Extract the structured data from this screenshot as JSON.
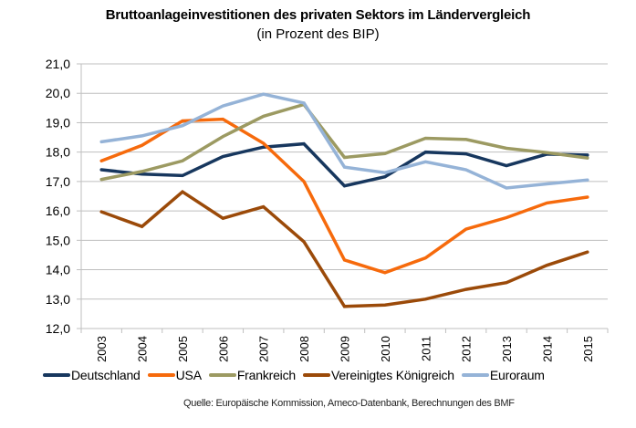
{
  "chart_data": {
    "type": "line",
    "title": "Bruttoanlageinvestitionen des privaten Sektors im Ländervergleich",
    "subtitle": "(in Prozent des BIP)",
    "xlabel": "",
    "ylabel": "",
    "categories": [
      "2003",
      "2004",
      "2005",
      "2006",
      "2007",
      "2008",
      "2009",
      "2010",
      "2011",
      "2012",
      "2013",
      "2014",
      "2015"
    ],
    "ylim": [
      12,
      21
    ],
    "yticks": [
      12,
      13,
      14,
      15,
      16,
      17,
      18,
      19,
      20,
      21
    ],
    "ytick_labels": [
      "12,0",
      "13,0",
      "14,0",
      "15,0",
      "16,0",
      "17,0",
      "18,0",
      "19,0",
      "20,0",
      "21,0"
    ],
    "grid": true,
    "legend_position": "bottom",
    "series": [
      {
        "name": "Deutschland",
        "color": "#17375E",
        "values": [
          17.4,
          17.25,
          17.2,
          17.85,
          18.17,
          18.28,
          16.85,
          17.16,
          18.0,
          17.94,
          17.54,
          17.93,
          17.9
        ]
      },
      {
        "name": "USA",
        "color": "#F66A0C",
        "values": [
          17.7,
          18.23,
          19.06,
          19.12,
          18.3,
          17.0,
          14.33,
          13.9,
          14.4,
          15.38,
          15.77,
          16.27,
          16.47
        ]
      },
      {
        "name": "Frankreich",
        "color": "#9C9A62",
        "values": [
          17.07,
          17.34,
          17.7,
          18.53,
          19.22,
          19.62,
          17.82,
          17.95,
          18.47,
          18.43,
          18.13,
          17.98,
          17.8
        ]
      },
      {
        "name": "Vereinigtes Königreich",
        "color": "#9B4A09",
        "values": [
          15.97,
          15.47,
          16.65,
          15.75,
          16.14,
          14.95,
          12.75,
          12.8,
          13.0,
          13.33,
          13.56,
          14.15,
          14.6
        ]
      },
      {
        "name": "Euroraum",
        "color": "#95B3D7",
        "values": [
          18.35,
          18.55,
          18.9,
          19.57,
          19.97,
          19.67,
          17.49,
          17.3,
          17.67,
          17.4,
          16.78,
          16.92,
          17.05
        ]
      }
    ],
    "source": "Quelle: Europäische Kommission, Ameco-Datenbank, Berechnungen des BMF"
  }
}
